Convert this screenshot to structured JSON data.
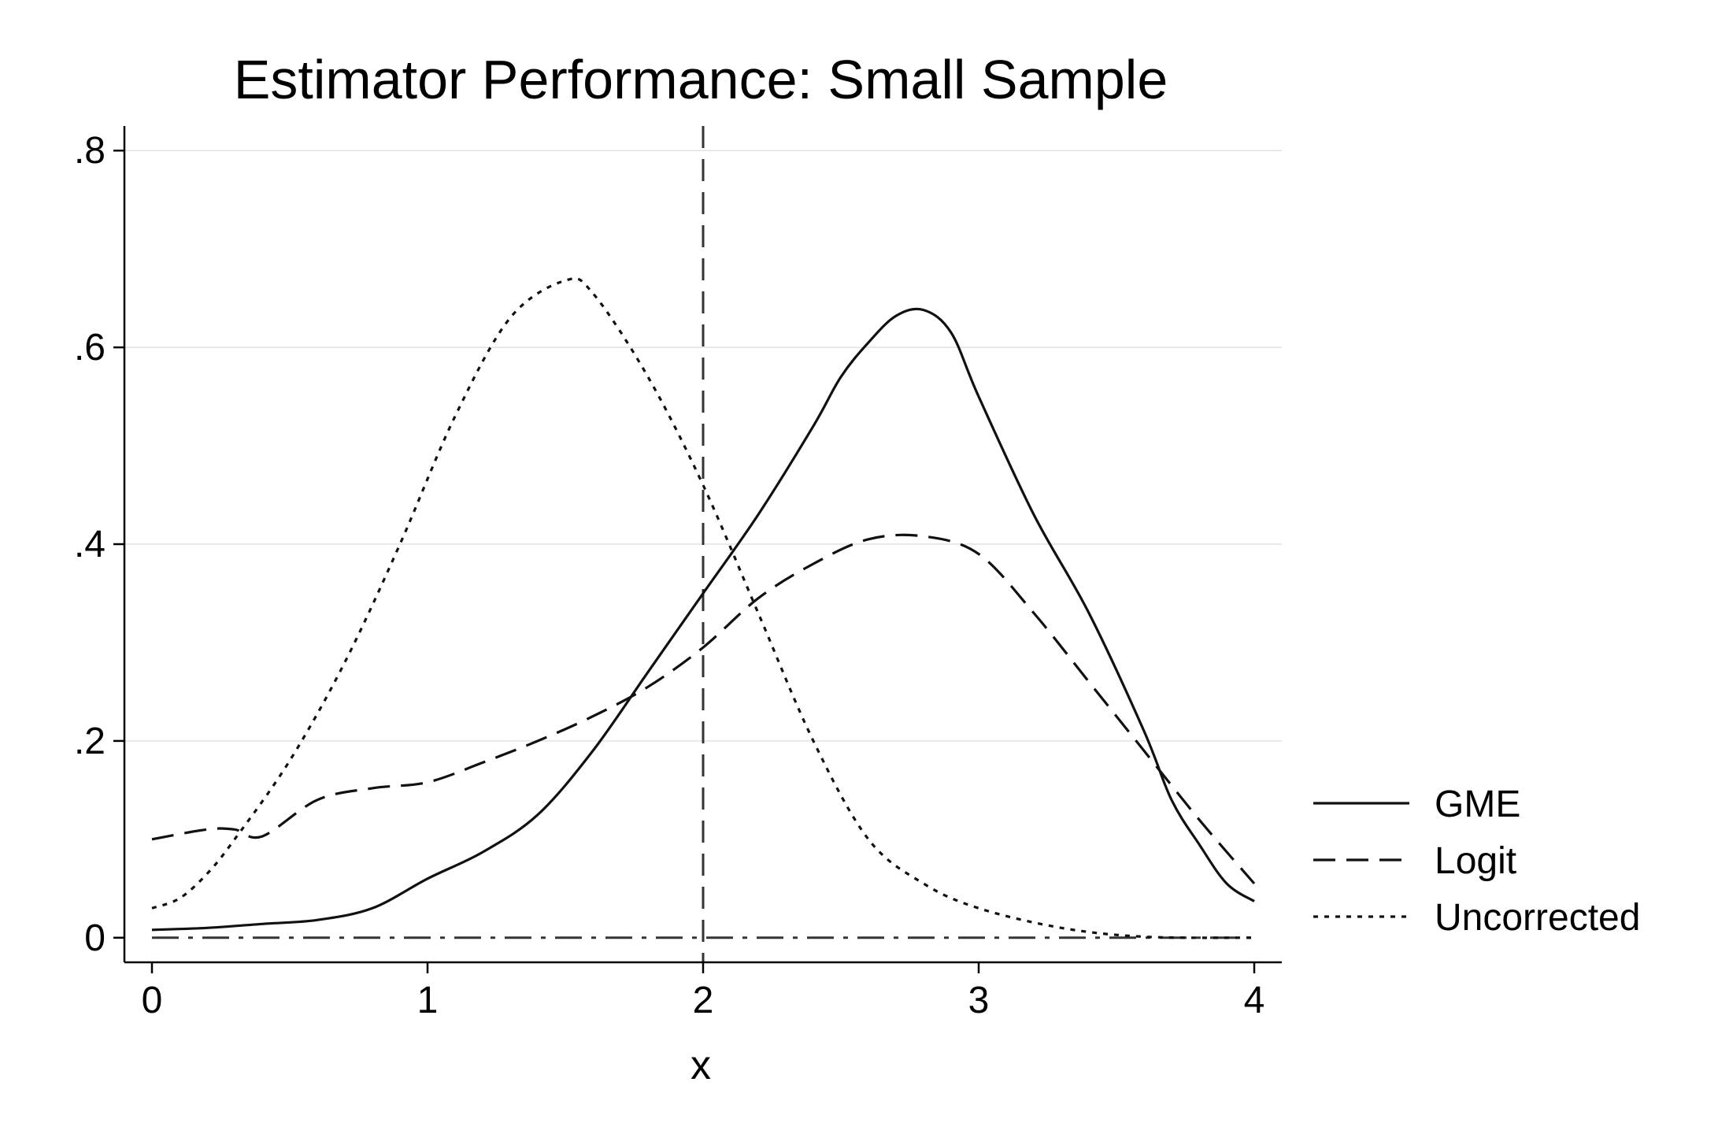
{
  "chart_data": {
    "type": "line",
    "title": "Estimator Performance: Small Sample",
    "xlabel": "x",
    "ylabel": "",
    "xlim": [
      -0.1,
      4.1
    ],
    "ylim": [
      -0.025,
      0.825
    ],
    "xticks": [
      0,
      1,
      2,
      3,
      4
    ],
    "xtick_labels": [
      "0",
      "1",
      "2",
      "3",
      "4"
    ],
    "yticks": [
      0,
      0.2,
      0.4,
      0.6,
      0.8
    ],
    "ytick_labels": [
      "0",
      ".2",
      ".4",
      ".6",
      ".8"
    ],
    "grid": "horizontal",
    "legend_position": "right",
    "reference_lines": [
      {
        "orientation": "vertical",
        "x": 2,
        "style": "dash"
      },
      {
        "orientation": "horizontal",
        "y": 0,
        "style": "dashdot"
      }
    ],
    "series": [
      {
        "name": "GME",
        "style": "solid",
        "x": [
          0,
          0.2,
          0.4,
          0.6,
          0.8,
          1.0,
          1.2,
          1.4,
          1.6,
          1.8,
          2.0,
          2.2,
          2.4,
          2.5,
          2.6,
          2.7,
          2.8,
          2.9,
          3.0,
          3.2,
          3.4,
          3.6,
          3.7,
          3.8,
          3.9,
          4.0
        ],
        "y": [
          0.008,
          0.01,
          0.014,
          0.018,
          0.03,
          0.06,
          0.087,
          0.125,
          0.19,
          0.27,
          0.35,
          0.43,
          0.52,
          0.57,
          0.605,
          0.632,
          0.638,
          0.615,
          0.55,
          0.43,
          0.33,
          0.21,
          0.14,
          0.095,
          0.055,
          0.037
        ]
      },
      {
        "name": "Logit",
        "style": "dash",
        "x": [
          0,
          0.2,
          0.3,
          0.4,
          0.6,
          0.8,
          1.0,
          1.2,
          1.4,
          1.6,
          1.8,
          2.0,
          2.2,
          2.4,
          2.6,
          2.8,
          3.0,
          3.2,
          3.4,
          3.6,
          3.8,
          4.0
        ],
        "y": [
          0.1,
          0.11,
          0.11,
          0.103,
          0.14,
          0.152,
          0.158,
          0.178,
          0.2,
          0.225,
          0.255,
          0.295,
          0.345,
          0.38,
          0.405,
          0.408,
          0.39,
          0.33,
          0.26,
          0.19,
          0.12,
          0.055
        ]
      },
      {
        "name": "Uncorrected",
        "style": "dot",
        "x": [
          0,
          0.1,
          0.2,
          0.3,
          0.5,
          0.7,
          0.9,
          1.1,
          1.3,
          1.5,
          1.6,
          1.8,
          2.0,
          2.2,
          2.4,
          2.6,
          2.8,
          3.0,
          3.3,
          3.6,
          4.0
        ],
        "y": [
          0.03,
          0.04,
          0.065,
          0.1,
          0.18,
          0.28,
          0.4,
          0.53,
          0.63,
          0.668,
          0.655,
          0.57,
          0.46,
          0.33,
          0.2,
          0.1,
          0.055,
          0.03,
          0.01,
          0.001,
          0
        ]
      }
    ]
  }
}
